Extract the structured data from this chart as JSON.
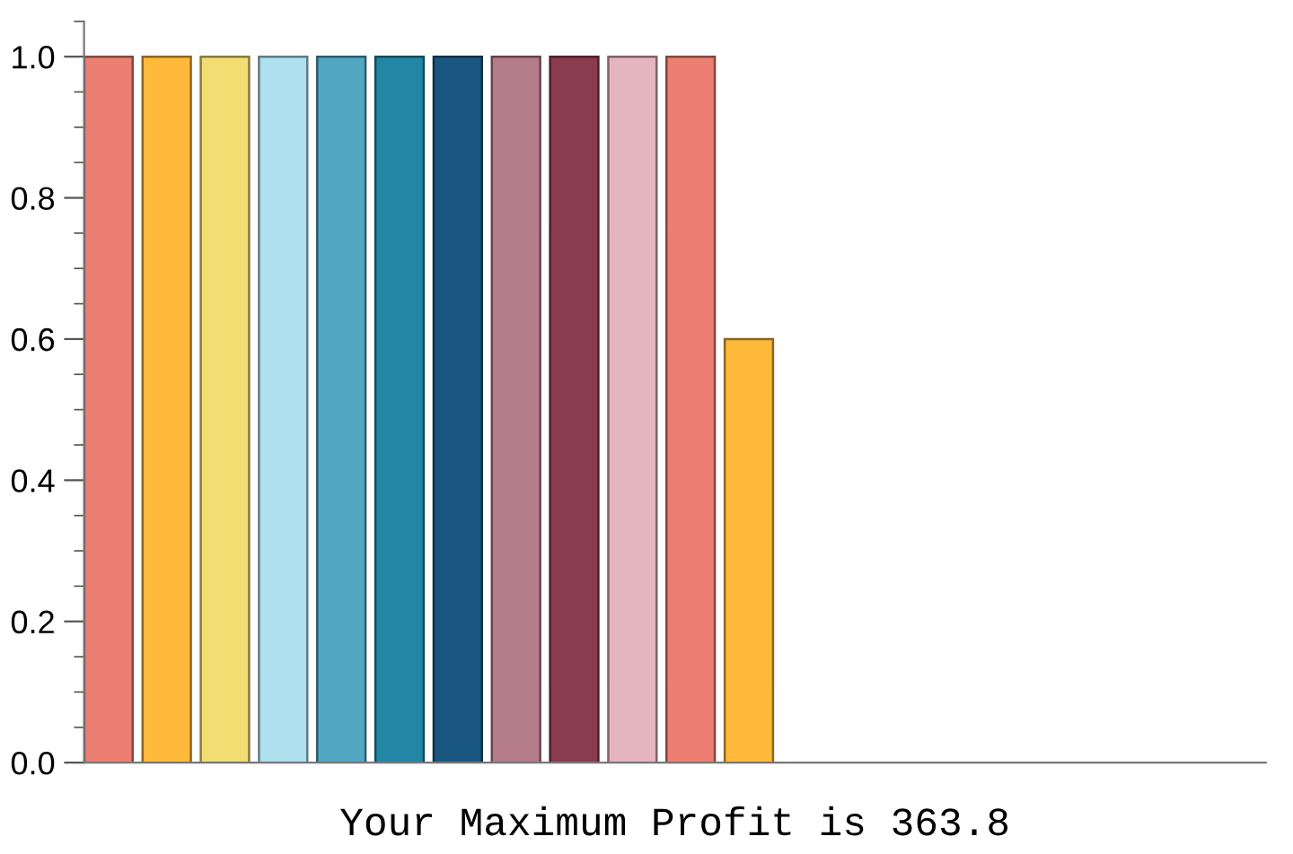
{
  "chart_data": {
    "type": "bar",
    "xlabel": "Your Maximum Profit is 363.8",
    "categories": [
      null,
      null,
      null,
      null,
      null,
      null,
      null,
      null,
      null,
      null,
      null,
      null,
      null,
      null,
      null,
      null,
      null,
      null,
      null,
      null
    ],
    "values": [
      1,
      1,
      1,
      1,
      1,
      1,
      1,
      1,
      1,
      1,
      1,
      0.6,
      0,
      0,
      0,
      0,
      0,
      0,
      0,
      0
    ],
    "colors": [
      "#ec7f71",
      "#ffb93b",
      "#f2dd72",
      "#aee0ee",
      "#52a7c2",
      "#2286a5",
      "#195780",
      "#b57c89",
      "#8a3c4f",
      "#e4b4bf",
      "#ec7f71",
      "#ffb93b",
      "#7a7a7a",
      "#7a7a7a",
      "#7a7a7a",
      "#7a7a7a",
      "#7a7a7a",
      "#7a7a7a",
      "#7a7a7a",
      "#7a7a7a"
    ],
    "ylim": [
      0,
      1.05
    ],
    "yticks": [
      {
        "value": 0,
        "label": "0.0"
      },
      {
        "value": 0.2,
        "label": "0.2"
      },
      {
        "value": 0.4,
        "label": "0.4"
      },
      {
        "value": 0.6,
        "label": "0.6"
      },
      {
        "value": 0.8,
        "label": "0.8"
      },
      {
        "value": 1,
        "label": "1.0"
      }
    ],
    "grid": false
  }
}
